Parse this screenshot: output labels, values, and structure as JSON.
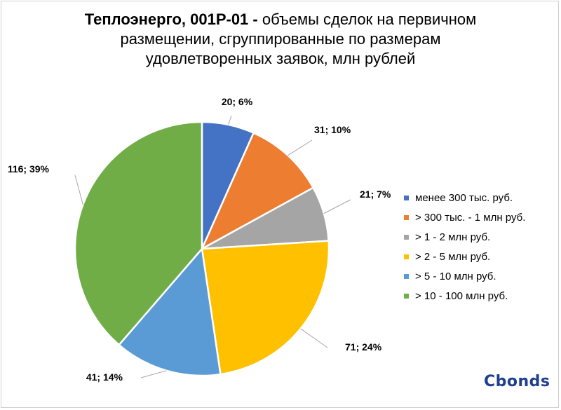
{
  "chart_data": {
    "type": "pie",
    "title_bold": "Теплоэнерго, 001Р-01 -",
    "title_rest_line1": " объемы сделок на первичном",
    "title_line2": "размещении, сгруппированные по размерам",
    "title_line3": "удовлетворенных заявок, млн рублей",
    "slices": [
      {
        "label": "менее 300 тыс. руб.",
        "value": 20,
        "percent": "6%",
        "data_label": "20; 6%",
        "color": "#4472c4"
      },
      {
        "label": "> 300 тыс. - 1 млн руб.",
        "value": 31,
        "percent": "10%",
        "data_label": "31; 10%",
        "color": "#ed7d31"
      },
      {
        "label": "> 1 - 2 млн руб.",
        "value": 21,
        "percent": "7%",
        "data_label": "21; 7%",
        "color": "#a5a5a5"
      },
      {
        "label": "> 2 - 5 млн руб.",
        "value": 71,
        "percent": "24%",
        "data_label": "71; 24%",
        "color": "#ffc000"
      },
      {
        "label": "> 5 - 10 млн руб.",
        "value": 41,
        "percent": "14%",
        "data_label": "41; 14%",
        "color": "#5b9bd5"
      },
      {
        "label": "> 10 - 100 млн руб.",
        "value": 116,
        "percent": "39%",
        "data_label": "116; 39%",
        "color": "#70ad47"
      }
    ],
    "legend_position": "right"
  },
  "logo_text": "Cbonds"
}
